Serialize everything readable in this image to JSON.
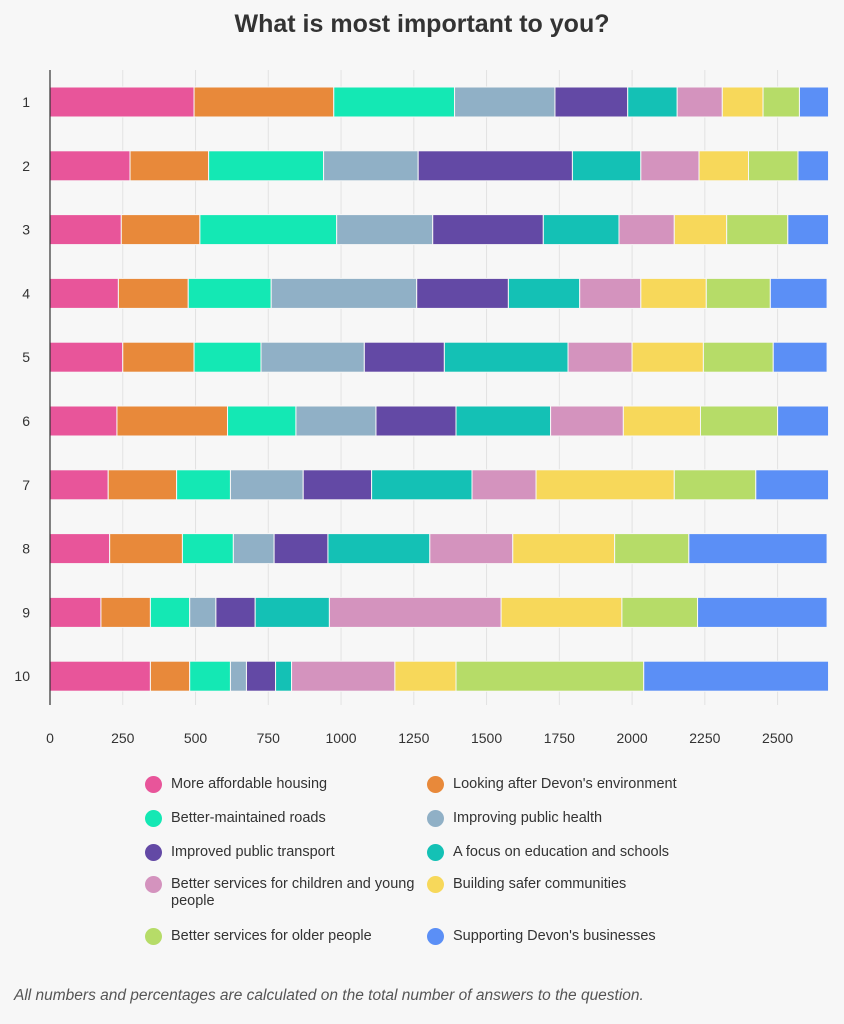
{
  "chart_data": {
    "type": "bar",
    "orientation": "horizontal",
    "stacked": true,
    "title": "What is most important to you?",
    "categories": [
      "1",
      "2",
      "3",
      "4",
      "5",
      "6",
      "7",
      "8",
      "9",
      "10"
    ],
    "xlim": [
      0,
      2680
    ],
    "xticks": [
      0,
      250,
      500,
      750,
      1000,
      1250,
      1500,
      1750,
      2000,
      2250,
      2500
    ],
    "grid": true,
    "legend_position": "bottom",
    "series": [
      {
        "name": "More affordable housing",
        "color": "#e8559a",
        "values": [
          495,
          275,
          245,
          235,
          250,
          230,
          200,
          205,
          175,
          345
        ]
      },
      {
        "name": "Looking after Devon's environment",
        "color": "#e8893a",
        "values": [
          480,
          270,
          270,
          240,
          245,
          380,
          235,
          250,
          170,
          135
        ]
      },
      {
        "name": "Better-maintained roads",
        "color": "#14e8b4",
        "values": [
          415,
          395,
          470,
          285,
          230,
          235,
          185,
          175,
          135,
          140
        ]
      },
      {
        "name": "Improving public health",
        "color": "#90b0c6",
        "values": [
          345,
          325,
          330,
          500,
          355,
          275,
          250,
          140,
          90,
          55
        ]
      },
      {
        "name": "Improved public transport",
        "color": "#6349a5",
        "values": [
          250,
          530,
          380,
          315,
          275,
          275,
          235,
          185,
          135,
          100
        ]
      },
      {
        "name": "A focus on education and schools",
        "color": "#14c1b5",
        "values": [
          170,
          235,
          260,
          245,
          425,
          325,
          345,
          350,
          255,
          55
        ]
      },
      {
        "name": "Better services for children and young people",
        "color": "#d493be",
        "values": [
          155,
          200,
          190,
          210,
          220,
          250,
          220,
          285,
          590,
          355
        ]
      },
      {
        "name": "Building safer communities",
        "color": "#f7d85a",
        "values": [
          140,
          170,
          180,
          225,
          245,
          265,
          475,
          350,
          415,
          210
        ]
      },
      {
        "name": "Better services for older people",
        "color": "#b6dc68",
        "values": [
          125,
          170,
          210,
          220,
          240,
          265,
          280,
          255,
          260,
          645
        ]
      },
      {
        "name": "Supporting Devon's businesses",
        "color": "#5b8ff6",
        "values": [
          100,
          105,
          140,
          195,
          185,
          175,
          250,
          475,
          445,
          635
        ]
      }
    ]
  },
  "footnote": "All numbers and percentages are calculated on the total number of answers to the question."
}
